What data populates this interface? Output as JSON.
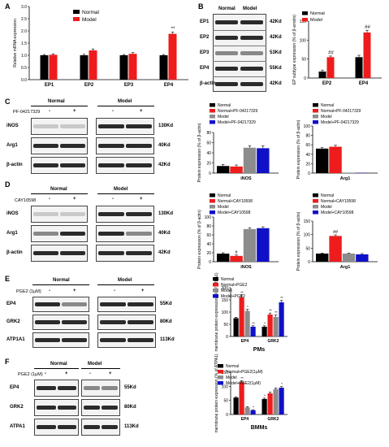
{
  "panels": [
    "A",
    "B",
    "C",
    "D",
    "E",
    "F"
  ],
  "colors": {
    "black": "#000000",
    "red": "#ee1c1c",
    "gray": "#8c8c8c",
    "blue": "#1010c8"
  },
  "A": {
    "chart_data": {
      "type": "bar",
      "ylabel": "Relative mRNA expression",
      "categories": [
        "EP1",
        "EP2",
        "EP3",
        "EP4"
      ],
      "series": [
        {
          "name": "Normal",
          "values": [
            1.0,
            1.0,
            1.0,
            1.0
          ]
        },
        {
          "name": "Model",
          "values": [
            1.02,
            1.2,
            1.06,
            1.88
          ]
        }
      ],
      "errors": [
        [
          0.03,
          0.04,
          0.03,
          0.03
        ],
        [
          0.04,
          0.06,
          0.05,
          0.07
        ]
      ],
      "annotations": [
        {
          "category": "EP4",
          "text": "**"
        }
      ],
      "yticks": [
        "0.0",
        "0.5",
        "1.0",
        "1.5",
        "2.0",
        "2.5",
        "3.0"
      ],
      "ylim": [
        0,
        3
      ]
    }
  },
  "B": {
    "header": {
      "normal": "Normal",
      "model": "Model"
    },
    "rows": [
      {
        "label": "EP1",
        "kd": "42Kd"
      },
      {
        "label": "EP2",
        "kd": "42Kd"
      },
      {
        "label": "EP3",
        "kd": "53Kd"
      },
      {
        "label": "EP4",
        "kd": "55Kd"
      },
      {
        "label": "β-actin",
        "kd": "42Kd"
      }
    ],
    "chart_data": {
      "type": "bar",
      "ylabel": "EP subtype expression (% of β-arretin)",
      "categories": [
        "EP2",
        "EP4"
      ],
      "series": [
        {
          "name": "Normal",
          "values": [
            17,
            55
          ]
        },
        {
          "name": "Model",
          "values": [
            55,
            120
          ]
        }
      ],
      "errors": [
        [
          4,
          5
        ],
        [
          3,
          6
        ]
      ],
      "annotations": [
        {
          "category": "EP2",
          "text": "##"
        },
        {
          "category": "EP4",
          "text": "##"
        }
      ],
      "yticks": [
        "0",
        "50",
        "100",
        "150"
      ],
      "ylim": [
        0,
        150
      ]
    }
  },
  "C": {
    "header": {
      "normal": "Normal",
      "model": "Model",
      "treatment": "PF-04217329",
      "minus": "-",
      "plus": "+"
    },
    "rows": [
      {
        "label": "iNOS",
        "kd": "130Kd"
      },
      {
        "label": "Arg1",
        "kd": "40Kd"
      },
      {
        "label": "β-actin",
        "kd": "42Kd"
      }
    ],
    "legend": [
      "Normal",
      "Normal+PF-04217329",
      "Model",
      "Model+PF-04217329"
    ],
    "chart1": {
      "type": "bar",
      "ylabel": "Protein expression (% of β-actin)",
      "category": "iNOS",
      "values": [
        14,
        13,
        50,
        49
      ],
      "errors": [
        3,
        3,
        4,
        5
      ],
      "yticks": [
        "0",
        "20",
        "40",
        "60",
        "80"
      ],
      "ylim": [
        0,
        80
      ]
    },
    "chart2": {
      "type": "bar",
      "ylabel": "Protein expression (% of β-actin)",
      "category": "Arg1",
      "values": [
        52,
        56,
        1,
        0.5
      ],
      "errors": [
        2,
        3,
        0,
        0
      ],
      "yticks": [
        "0",
        "20",
        "40",
        "60",
        "80",
        "100"
      ],
      "ylim": [
        0,
        100
      ]
    }
  },
  "D": {
    "header": {
      "normal": "Normal",
      "model": "Model",
      "treatment": "CAY10598",
      "minus": "-",
      "plus": "+"
    },
    "rows": [
      {
        "label": "iNOS",
        "kd": "130Kd"
      },
      {
        "label": "Arg1",
        "kd": "40Kd"
      },
      {
        "label": "β-actin",
        "kd": "42Kd"
      }
    ],
    "legend": [
      "Normal",
      "Normal+CAY10598",
      "Model",
      "Model+CAY10598"
    ],
    "chart1": {
      "type": "bar",
      "ylabel": "Protein expression (% of β-actin)",
      "category": "iNOS",
      "values": [
        18,
        13,
        73,
        75
      ],
      "errors": [
        2,
        2,
        3,
        3
      ],
      "annotations": [
        "",
        "#",
        "",
        ""
      ],
      "yticks": [
        "0",
        "20",
        "40",
        "60",
        "80",
        "100"
      ],
      "ylim": [
        0,
        100
      ]
    },
    "chart2": {
      "type": "bar",
      "ylabel": "Protein expression (% of β-actin)",
      "category": "Arg1",
      "values": [
        30,
        95,
        30,
        27
      ],
      "errors": [
        2,
        4,
        2,
        3
      ],
      "annotations": [
        "",
        "##",
        "",
        ""
      ],
      "yticks": [
        "0",
        "50",
        "100",
        "150"
      ],
      "ylim": [
        0,
        150
      ]
    }
  },
  "E": {
    "header": {
      "normal": "Normal",
      "model": "Model",
      "treatment": "PGE2 (1μM)",
      "minus": "-",
      "plus": "+"
    },
    "rows": [
      {
        "label": "EP4",
        "kd": "55Kd"
      },
      {
        "label": "GRK2",
        "kd": "80Kd"
      },
      {
        "label": "ATP1A1",
        "kd": "113Kd"
      }
    ],
    "legend": [
      "Normal",
      "Normal+PGE2",
      "Model",
      "Model+PGE2"
    ],
    "chart": {
      "type": "bar",
      "ylabel": "membrane protein expression (% of ATPA1)",
      "xlabel": "PMs",
      "categories": [
        "EP4",
        "GRK2"
      ],
      "series": [
        [
          75,
          40
        ],
        [
          160,
          90
        ],
        [
          105,
          80
        ],
        [
          40,
          140
        ]
      ],
      "errors": [
        [
          4,
          4
        ],
        [
          10,
          6
        ],
        [
          6,
          8
        ],
        [
          4,
          8
        ]
      ],
      "annotations": [
        [
          "",
          "*"
        ],
        [
          "**",
          "**"
        ],
        [
          "*",
          "**"
        ],
        [
          "**",
          "**"
        ]
      ],
      "yticks": [
        "0",
        "50",
        "100",
        "150",
        "200"
      ],
      "ylim": [
        0,
        200
      ]
    }
  },
  "F": {
    "header": {
      "normal": "Normal",
      "model": "Model",
      "treatment": "PGE2 (1μM)",
      "minus": "-",
      "plus": "+"
    },
    "rows": [
      {
        "label": "EP4",
        "kd": "55Kd"
      },
      {
        "label": "GRK2",
        "kd": "80Kd"
      },
      {
        "label": "ATPA1",
        "kd": "113Kd"
      }
    ],
    "legend": [
      "Normal",
      "Normal+PGE2(1μM)",
      "Model",
      "Model+PGE2(1μM)"
    ],
    "chart": {
      "type": "bar",
      "ylabel": "membrane protein expression (% of ATPA1)",
      "xlabel": "BMMs",
      "categories": [
        "EP4",
        "GRK2"
      ],
      "series": [
        [
          60,
          55
        ],
        [
          115,
          75
        ],
        [
          25,
          90
        ],
        [
          15,
          95
        ]
      ],
      "errors": [
        [
          3,
          3
        ],
        [
          5,
          4
        ],
        [
          3,
          4
        ],
        [
          2,
          4
        ]
      ],
      "annotations": [
        [
          "",
          "*"
        ],
        [
          "**",
          ""
        ],
        [
          "",
          ""
        ],
        [
          "*",
          "*"
        ]
      ],
      "yticks": [
        "0",
        "50",
        "100",
        "150"
      ],
      "ylim": [
        0,
        150
      ]
    }
  }
}
